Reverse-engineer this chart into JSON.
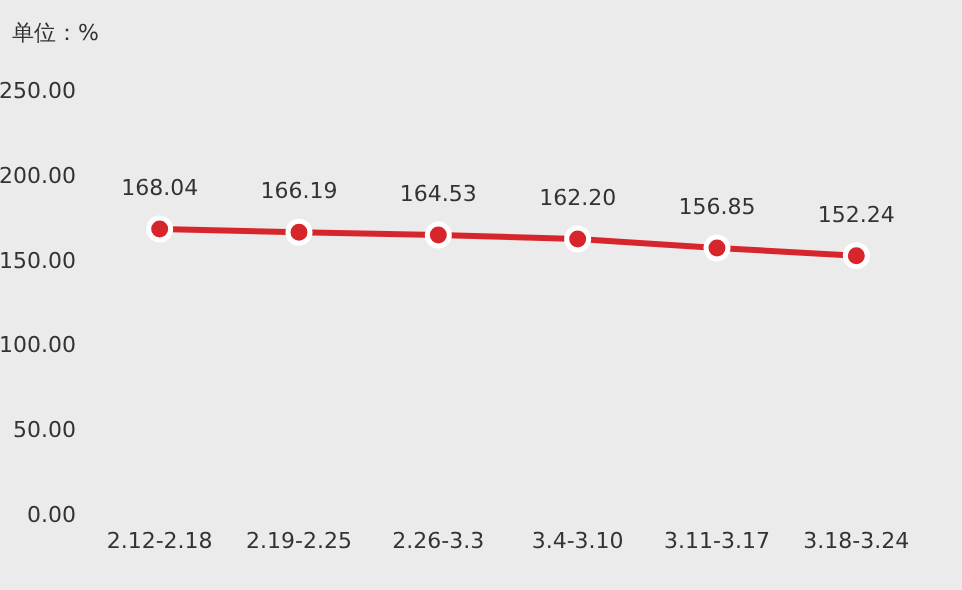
{
  "chart_data": {
    "type": "line",
    "ylabel": "单位：%",
    "categories": [
      "2.12-2.18",
      "2.19-2.25",
      "2.26-3.3",
      "3.4-3.10",
      "3.11-3.17",
      "3.18-3.24"
    ],
    "series": [
      {
        "color": "#d7262b",
        "values": [
          168.04,
          166.19,
          164.53,
          162.2,
          156.85,
          152.24
        ],
        "value_labels": [
          "168.04",
          "166.19",
          "164.53",
          "162.20",
          "156.85",
          "152.24"
        ]
      }
    ],
    "ylim": [
      0,
      250
    ],
    "yticks": [
      {
        "value": 0,
        "label": "0.00"
      },
      {
        "value": 50,
        "label": "50.00"
      },
      {
        "value": 100,
        "label": "100.00"
      },
      {
        "value": 150,
        "label": "150.00"
      },
      {
        "value": 200,
        "label": "200.00"
      },
      {
        "value": 250,
        "label": "250.00"
      }
    ],
    "marker": "circle",
    "line_style": "solid"
  }
}
